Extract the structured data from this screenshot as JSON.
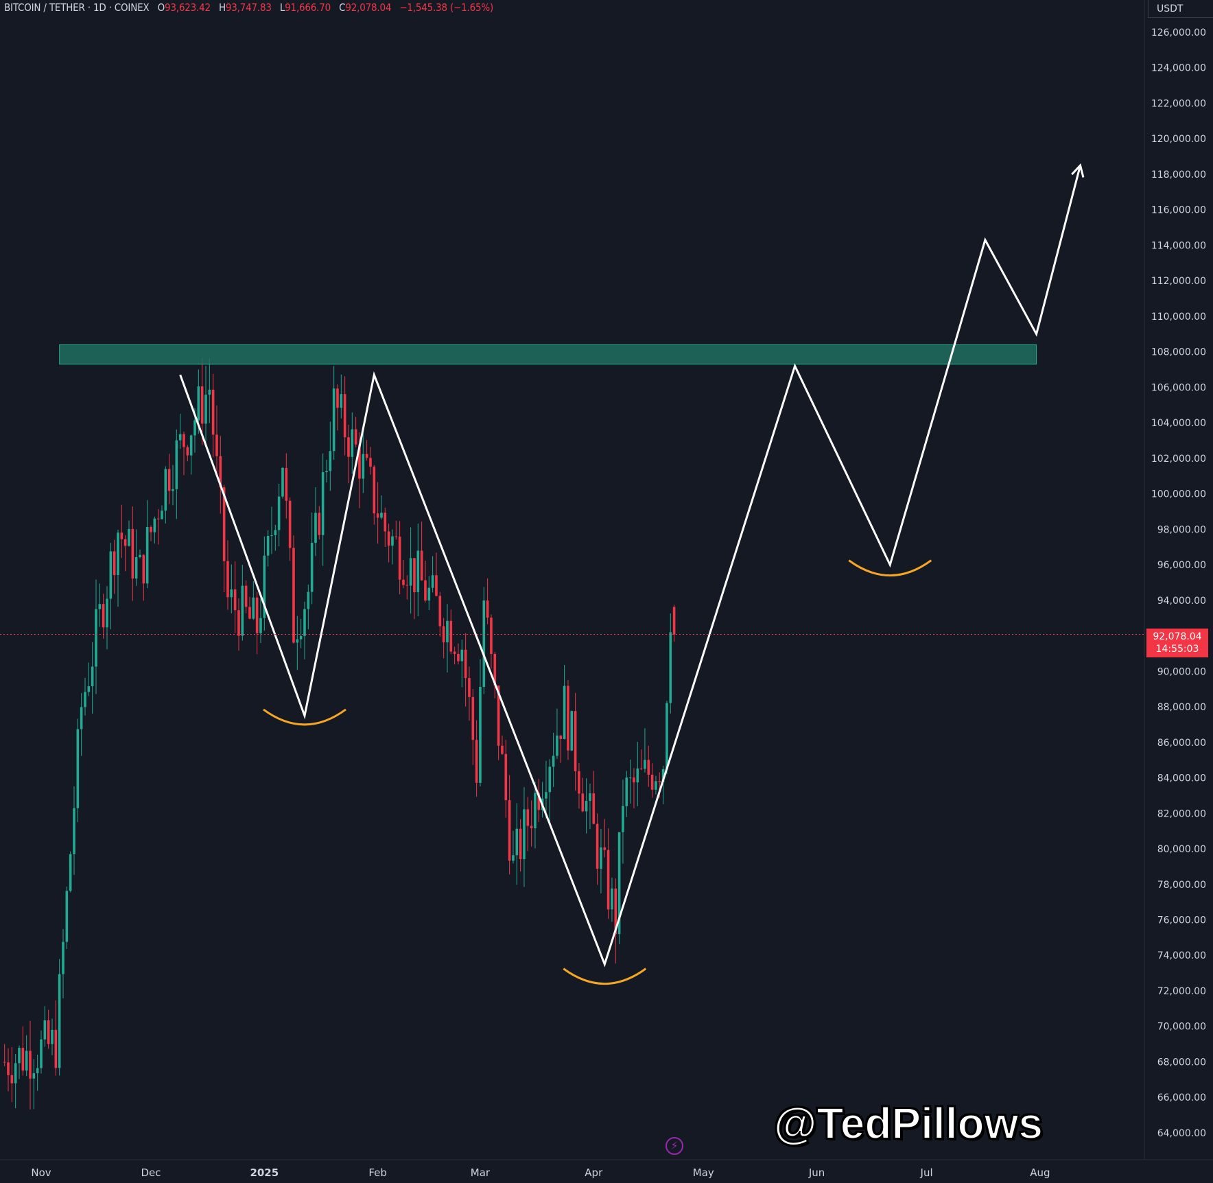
{
  "header": {
    "symbol": "BITCOIN / TETHER · 1D · COINEX",
    "open_key": "O",
    "open": "93,623.42",
    "high_key": "H",
    "high": "93,747.83",
    "low_key": "L",
    "low": "91,666.70",
    "close_key": "C",
    "close": "92,078.04",
    "change": "−1,545.38 (−1.65%)"
  },
  "currency": "USDT",
  "last_price": {
    "value": "92,078.04",
    "countdown": "14:55:03"
  },
  "watermark": "@TedPillows",
  "colors": {
    "up": "#22ab94",
    "down": "#f23645",
    "zone": "#1e6e5f",
    "curve": "#f5a623",
    "pattern": "#ffffff",
    "price_line": "#f23645"
  },
  "chart_data": {
    "type": "candlestick",
    "title": "BITCOIN / TETHER · 1D · COINEX",
    "ylim": [
      63000,
      127000
    ],
    "y_ticks": [
      126000,
      124000,
      122000,
      120000,
      118000,
      116000,
      114000,
      112000,
      110000,
      108000,
      106000,
      104000,
      102000,
      100000,
      98000,
      96000,
      94000,
      92000,
      90000,
      88000,
      86000,
      84000,
      82000,
      80000,
      78000,
      76000,
      74000,
      72000,
      70000,
      68000,
      66000,
      64000
    ],
    "y_tick_labels": [
      "126,000.00",
      "124,000.00",
      "122,000.00",
      "120,000.00",
      "118,000.00",
      "116,000.00",
      "114,000.00",
      "112,000.00",
      "110,000.00",
      "108,000.00",
      "106,000.00",
      "104,000.00",
      "102,000.00",
      "100,000.00",
      "98,000.00",
      "96,000.00",
      "94,000.00",
      "92,000.00",
      "90,000.00",
      "88,000.00",
      "86,000.00",
      "84,000.00",
      "82,000.00",
      "80,000.00",
      "78,000.00",
      "76,000.00",
      "74,000.00",
      "72,000.00",
      "70,000.00",
      "68,000.00",
      "66,000.00",
      "64,000.00"
    ],
    "x_ticks": [
      {
        "date": "2024-11-01",
        "label": "Nov"
      },
      {
        "date": "2024-12-01",
        "label": "Dec"
      },
      {
        "date": "2025-01-01",
        "label": "2025"
      },
      {
        "date": "2025-02-01",
        "label": "Feb"
      },
      {
        "date": "2025-03-01",
        "label": "Mar"
      },
      {
        "date": "2025-04-01",
        "label": "Apr"
      },
      {
        "date": "2025-05-01",
        "label": "May"
      },
      {
        "date": "2025-06-01",
        "label": "Jun"
      },
      {
        "date": "2025-07-01",
        "label": "Jul"
      },
      {
        "date": "2025-08-01",
        "label": "Aug"
      }
    ],
    "price_path": [
      {
        "date": "2024-10-22",
        "close": 68000
      },
      {
        "date": "2024-11-05",
        "close": 69000
      },
      {
        "date": "2024-11-12",
        "close": 88000
      },
      {
        "date": "2024-11-22",
        "close": 98000
      },
      {
        "date": "2024-11-28",
        "close": 95500
      },
      {
        "date": "2024-12-05",
        "close": 101000
      },
      {
        "date": "2024-12-17",
        "close": 106000
      },
      {
        "date": "2024-12-22",
        "close": 94000
      },
      {
        "date": "2024-12-30",
        "close": 92500
      },
      {
        "date": "2025-01-06",
        "close": 102000
      },
      {
        "date": "2025-01-09",
        "close": 92500
      },
      {
        "date": "2025-01-13",
        "close": 94500
      },
      {
        "date": "2025-01-20",
        "close": 105000
      },
      {
        "date": "2025-01-27",
        "close": 102000
      },
      {
        "date": "2025-02-03",
        "close": 98000
      },
      {
        "date": "2025-02-24",
        "close": 91500
      },
      {
        "date": "2025-02-28",
        "close": 84500
      },
      {
        "date": "2025-03-02",
        "close": 94000
      },
      {
        "date": "2025-03-10",
        "close": 79000
      },
      {
        "date": "2025-03-24",
        "close": 88000
      },
      {
        "date": "2025-03-30",
        "close": 82500
      },
      {
        "date": "2025-04-07",
        "close": 76000
      },
      {
        "date": "2025-04-09",
        "close": 83000
      },
      {
        "date": "2025-04-20",
        "close": 85000
      },
      {
        "date": "2025-04-22",
        "close": 93500
      },
      {
        "date": "2025-04-23",
        "close": 92078.04
      }
    ],
    "resistance_zone": {
      "from_date": "2024-11-06",
      "to_date": "2025-07-31",
      "low": 107300,
      "high": 108400
    },
    "projection_path": [
      {
        "date": "2024-12-09",
        "price": 106700
      },
      {
        "date": "2025-01-12",
        "price": 87500
      },
      {
        "date": "2025-01-31",
        "price": 106700
      },
      {
        "date": "2025-04-04",
        "price": 73500
      },
      {
        "date": "2025-05-26",
        "price": 107200
      },
      {
        "date": "2025-06-21",
        "price": 96000
      },
      {
        "date": "2025-07-17",
        "price": 114300
      },
      {
        "date": "2025-07-31",
        "price": 109000
      },
      {
        "date": "2025-08-12",
        "price": 118500
      }
    ],
    "bottom_curves": [
      {
        "center_date": "2025-01-12",
        "price": 87000
      },
      {
        "center_date": "2025-04-04",
        "price": 72400
      },
      {
        "center_date": "2025-06-21",
        "price": 95400
      }
    ]
  }
}
